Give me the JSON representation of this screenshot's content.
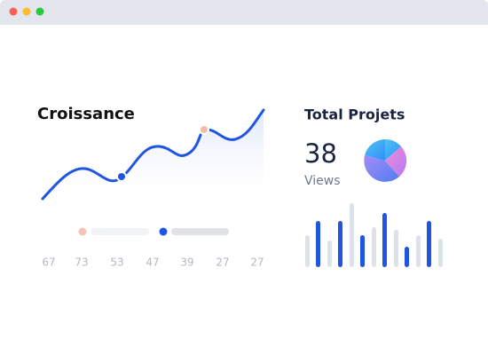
{
  "growth": {
    "title": "Croissance",
    "labels": [
      "67",
      "73",
      "53",
      "47",
      "39",
      "27",
      "27"
    ]
  },
  "projects": {
    "title": "Total Projets",
    "count": "38",
    "unit": "Views"
  }
}
